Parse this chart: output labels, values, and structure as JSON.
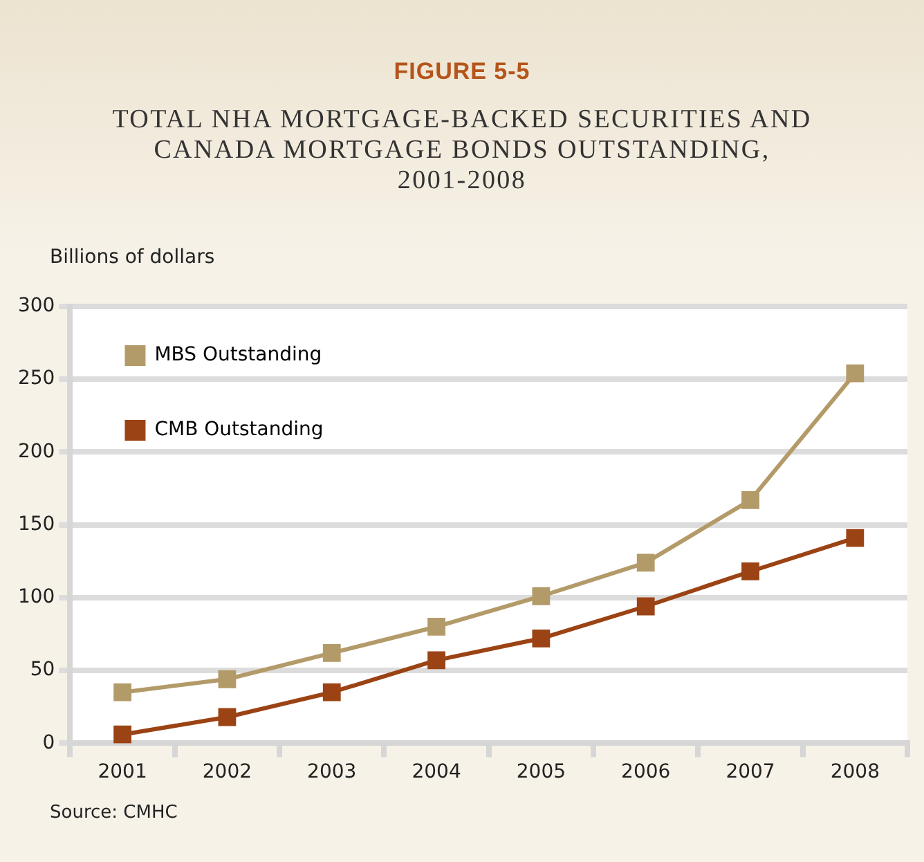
{
  "chart_data": {
    "type": "line",
    "title": "FIGURE 5-5",
    "subtitle": "TOTAL NHA MORTGAGE-BACKED SECURITIES AND CANADA MORTGAGE BONDS OUTSTANDING, 2001-2008",
    "ylabel": "Billions of dollars",
    "categories": [
      "2001",
      "2002",
      "2003",
      "2004",
      "2005",
      "2006",
      "2007",
      "2008"
    ],
    "series": [
      {
        "name": "MBS Outstanding",
        "color": "#b39b69",
        "values": [
          35,
          44,
          62,
          80,
          101,
          124,
          167,
          254
        ]
      },
      {
        "name": "CMB Outstanding",
        "color": "#9b4314",
        "values": [
          6,
          18,
          35,
          57,
          72,
          94,
          118,
          141
        ]
      }
    ],
    "ylim": [
      0,
      300
    ],
    "yticks": [
      0,
      50,
      100,
      150,
      200,
      250,
      300
    ],
    "grid": "y",
    "legend": "top left",
    "marker": "square",
    "line_style": "solid",
    "annotations": [
      "Source: CMHC"
    ]
  }
}
